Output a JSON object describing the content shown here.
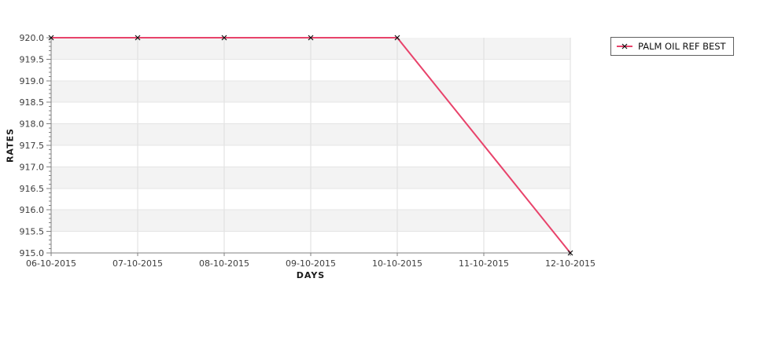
{
  "chart_data": {
    "type": "line",
    "title": "",
    "xlabel": "DAYS",
    "ylabel": "RATES",
    "categories": [
      "06-10-2015",
      "07-10-2015",
      "08-10-2015",
      "09-10-2015",
      "10-10-2015",
      "11-10-2015",
      "12-10-2015"
    ],
    "y_tick_labels": [
      "920.0",
      "919.5",
      "919.0",
      "918.5",
      "918.0",
      "917.5",
      "917.0",
      "916.5",
      "916.0",
      "915.5",
      "915.0"
    ],
    "ylim": [
      915.0,
      920.0
    ],
    "y_tick_step": 0.5,
    "y_minor_divisions": 5,
    "grid": true,
    "legend_position": "top-right",
    "band_colors": [
      "#f3f3f3",
      "#ffffff"
    ],
    "gridline_color_vertical": "#dcdcdc",
    "gridline_color_horizontal": "#e4e4e4",
    "axis_color": "#808080",
    "tick_label_color": "#3d3d3d",
    "series": [
      {
        "name": "PALM OIL REF BEST",
        "color": "#e8436b",
        "marker": "x",
        "marker_color": "#111111",
        "points": [
          [
            "06-10-2015",
            920.0
          ],
          [
            "07-10-2015",
            920.0
          ],
          [
            "08-10-2015",
            920.0
          ],
          [
            "09-10-2015",
            920.0
          ],
          [
            "10-10-2015",
            920.0
          ],
          [
            "12-10-2015",
            915.0
          ]
        ]
      }
    ]
  }
}
